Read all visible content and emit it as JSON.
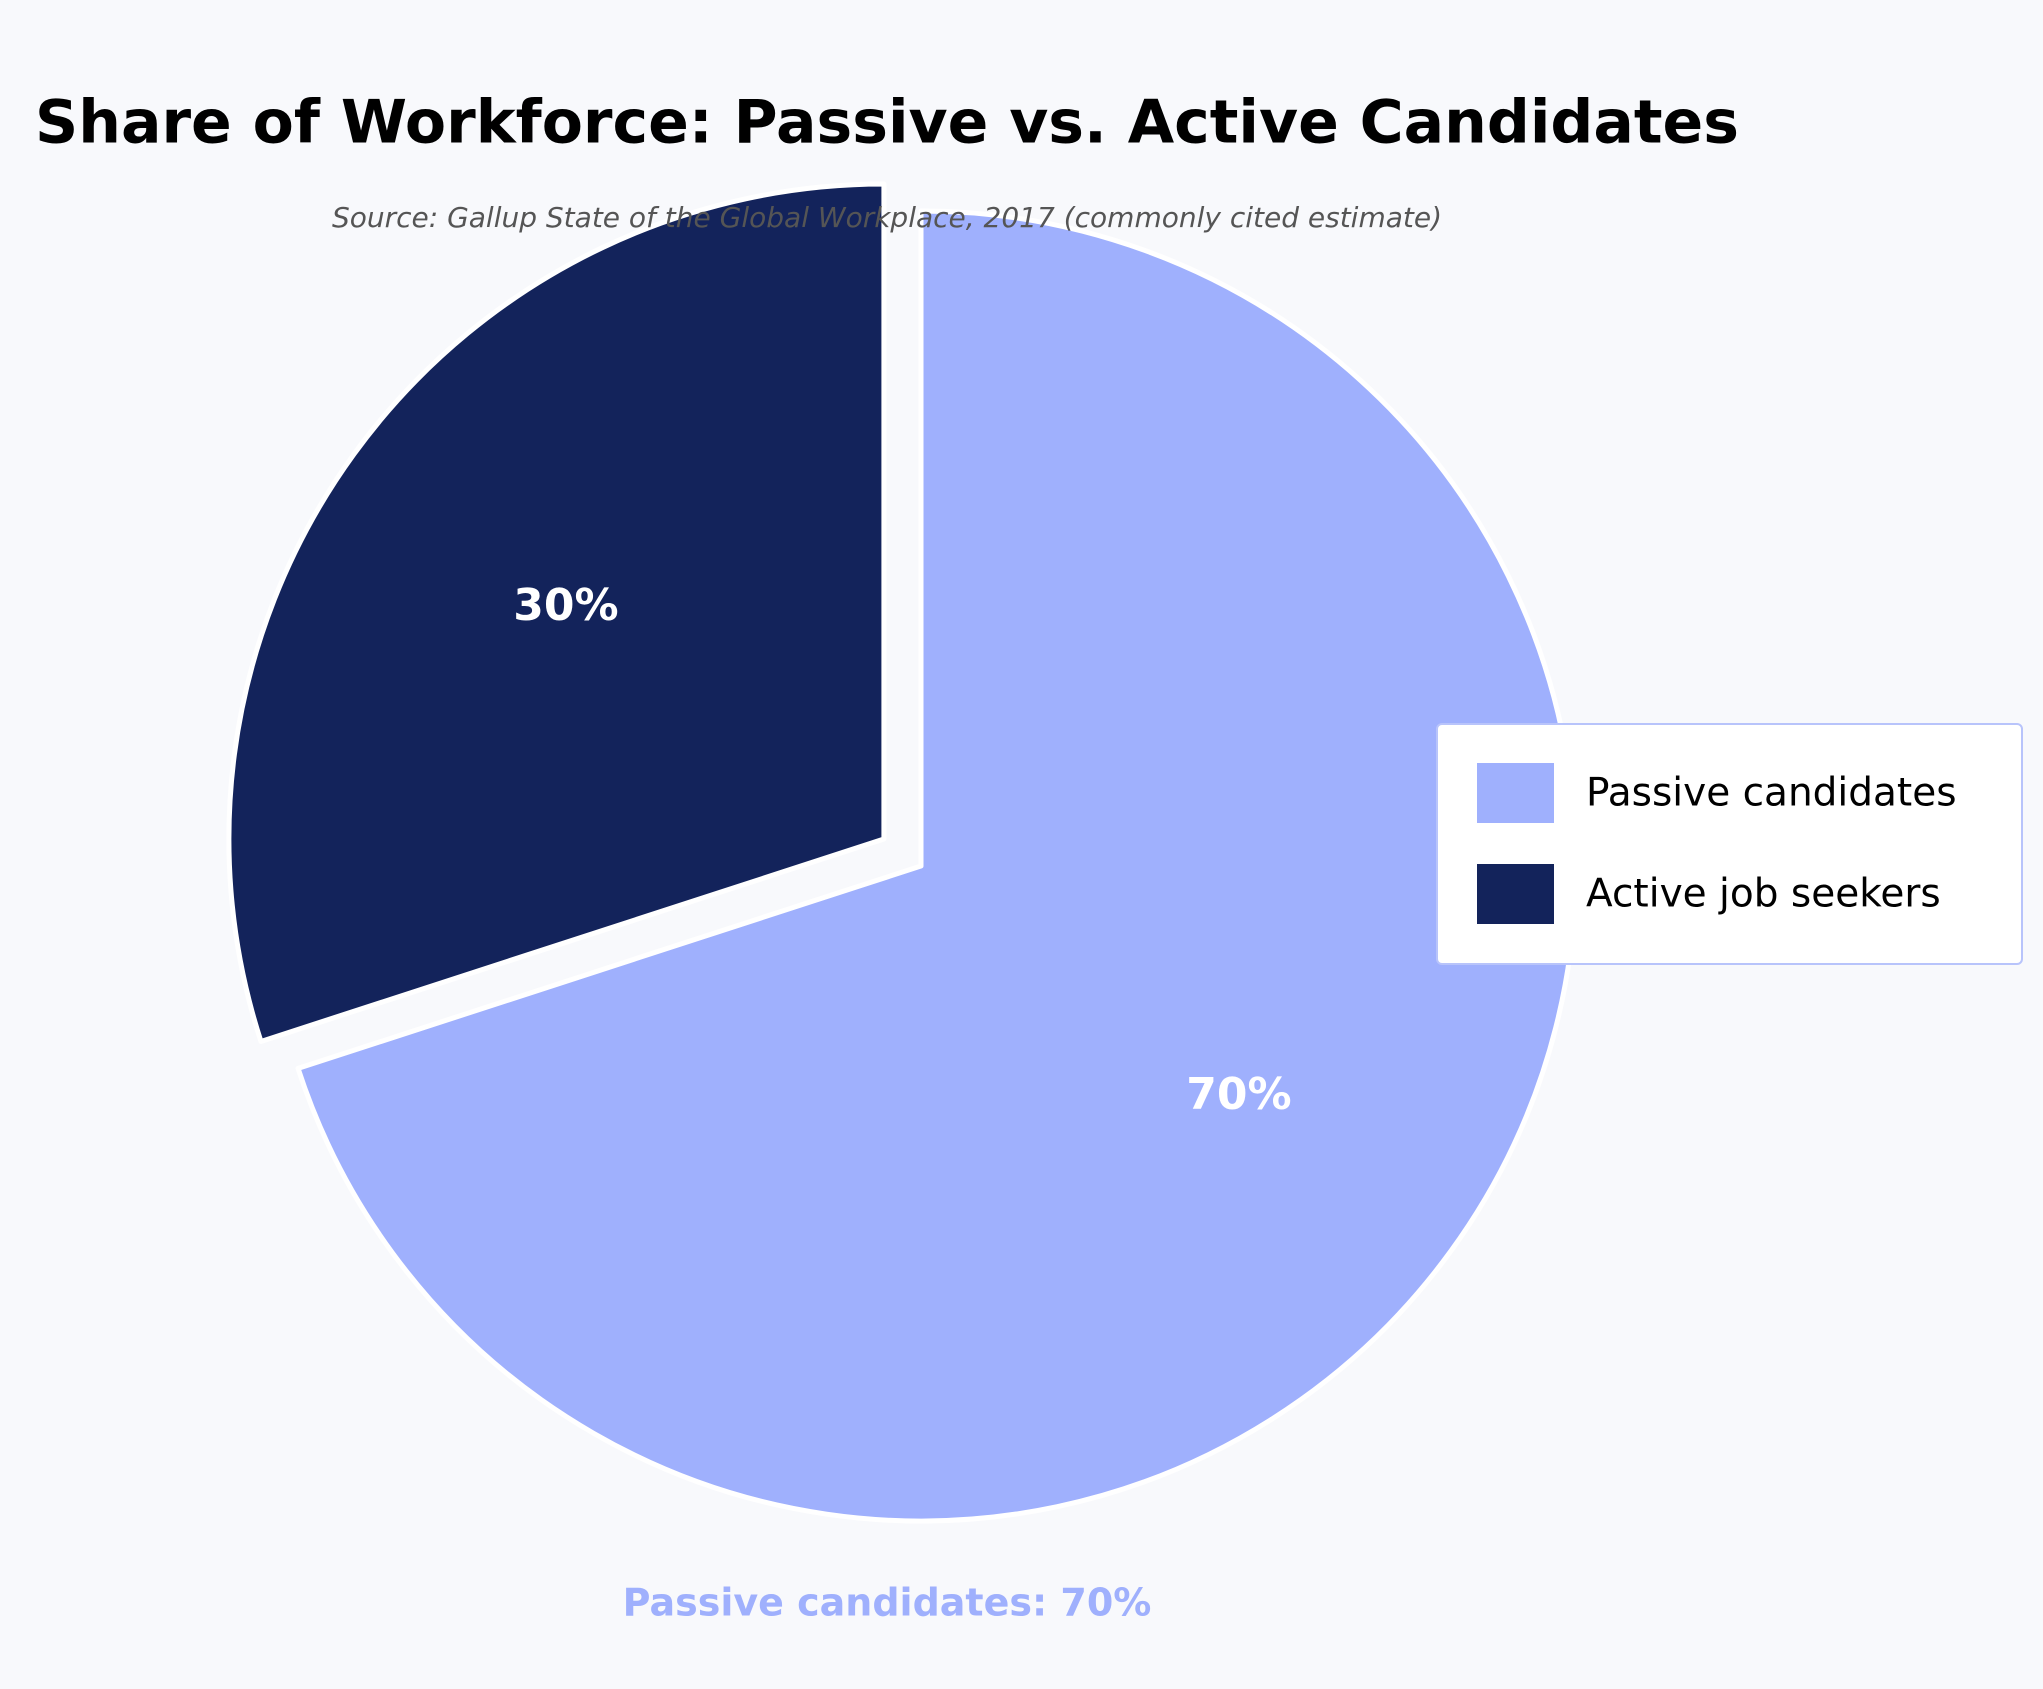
{
  "chart_data": {
    "type": "pie",
    "title": "Share of Workforce: Passive vs. Active Candidates",
    "subtitle": "Source: Gallup State of the Global Workplace, 2017 (commonly cited estimate)",
    "annotation": "Passive candidates: 70%",
    "categories": [
      "Passive candidates",
      "Active job seekers"
    ],
    "values": [
      70,
      30
    ],
    "value_labels": [
      "70%",
      "30%"
    ],
    "colors": [
      "#9fb0fd",
      "#13235b"
    ],
    "explode": [
      0,
      0.07
    ],
    "legend": "right"
  }
}
